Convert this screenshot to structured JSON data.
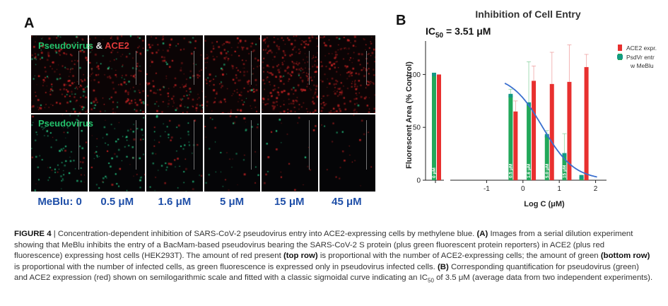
{
  "panel_a": {
    "letter": "A",
    "top_row_label_green": "Pseudovirus",
    "top_row_label_amp": " & ",
    "top_row_label_red": "ACE2",
    "bottom_row_label": "Pseudovirus",
    "concentrations": [
      "MeBlu: 0",
      "0.5 μM",
      "1.6 μM",
      "5 μM",
      "15 μM",
      "45 μM"
    ]
  },
  "panel_b": {
    "letter": "B",
    "ic50_text": "IC",
    "ic50_sub": "50",
    "ic50_value": " = 3.51 μM"
  },
  "chart_data": {
    "type": "bar",
    "title": "Inhibition of Cell Entry",
    "xlabel": "Log C (μM)",
    "ylabel": "Fluorescent Area (% Control)",
    "xlim": [
      -2,
      2.3
    ],
    "ylim": [
      0,
      125
    ],
    "xticks": [
      -1,
      0,
      1,
      2
    ],
    "yticks": [
      0,
      50,
      100
    ],
    "break_x_tick_label": "",
    "series": [
      {
        "name": "ACE2 expr.",
        "color": "#e8302f",
        "points": [
          {
            "x": "control",
            "y": 100,
            "err": 0
          },
          {
            "x": -0.3,
            "y": 65,
            "err": 10
          },
          {
            "x": 0.2,
            "y": 94,
            "err": 14
          },
          {
            "x": 0.7,
            "y": 91,
            "err": 30
          },
          {
            "x": 1.18,
            "y": 93,
            "err": 35
          },
          {
            "x": 1.65,
            "y": 107,
            "err": 12
          }
        ]
      },
      {
        "name": "PsdVr entr w MeBlu",
        "color": "#22a85a",
        "points": [
          {
            "x": "control",
            "y": 100,
            "err": 1,
            "label": "0 μM"
          },
          {
            "x": -0.3,
            "y": 80,
            "err": 6,
            "label": "0.5 μM"
          },
          {
            "x": 0.2,
            "y": 72,
            "err": 40,
            "label": "1.6 μM"
          },
          {
            "x": 0.7,
            "y": 42,
            "err": 5,
            "label": "5.0 μM"
          },
          {
            "x": 1.18,
            "y": 24,
            "err": 20,
            "label": "15 μM"
          },
          {
            "x": 1.65,
            "y": 3,
            "err": 2,
            "label": ""
          }
        ]
      }
    ],
    "fit": {
      "top": 100,
      "bottom": 0,
      "log_ic50": 0.545,
      "hill": 1.0,
      "color": "#3a6fcf"
    },
    "legend_position": "right"
  },
  "caption": {
    "fig_label": "FIGURE 4",
    "separator": " | ",
    "text1": "Concentration-dependent inhibition of SARS-CoV-2 pseudovirus entry into ACE2-expressing cells by methylene blue. ",
    "a_label": "(A)",
    "text2": " Images from a serial dilution experiment showing that MeBlu inhibits the entry of a BacMam-based pseudovirus bearing the SARS-CoV-2 S protein (plus green fluorescent protein reporters) in ACE2 (plus red fluorescence) expressing host cells (HEK293T). The amount of red present ",
    "top_row": "(top row)",
    "text3": " is proportional with the number of ACE2-expressing cells; the amount of green ",
    "bottom_row": "(bottom row)",
    "text4": " is proportional with the number of infected cells, as green fluorescence is expressed only in pseudovirus infected cells. ",
    "b_label": "(B)",
    "text5": " Corresponding quantification for pseudovirus (green) and ACE2 expression (red) shown on semilogarithmic scale and fitted with a classic sigmoidal curve indicating an IC",
    "ic_sub": "50",
    "text6": " of 3.5 μM (average data from two independent experiments)."
  }
}
